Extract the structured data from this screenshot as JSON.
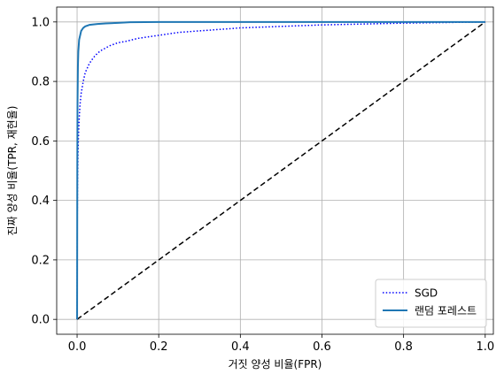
{
  "chart_data": {
    "type": "line",
    "xlabel": "거짓 양성 비율(FPR)",
    "ylabel": "진짜 양성 비율(TPR, 재현율)",
    "xlim": [
      -0.05,
      1.02
    ],
    "ylim": [
      -0.05,
      1.05
    ],
    "xticks": [
      0.0,
      0.2,
      0.4,
      0.6,
      0.8,
      1.0
    ],
    "yticks": [
      0.0,
      0.2,
      0.4,
      0.6,
      0.8,
      1.0
    ],
    "xtick_labels": [
      "0.0",
      "0.2",
      "0.4",
      "0.6",
      "0.8",
      "1.0"
    ],
    "ytick_labels": [
      "0.0",
      "0.2",
      "0.4",
      "0.6",
      "0.8",
      "1.0"
    ],
    "grid": true,
    "legend": {
      "placement": "bottom-right"
    },
    "series": [
      {
        "name": "SGD",
        "color": "#0000ff",
        "style": "dotted",
        "x": [
          0,
          0.0005,
          0.001,
          0.002,
          0.003,
          0.004,
          0.005,
          0.007,
          0.01,
          0.015,
          0.02,
          0.03,
          0.04,
          0.05,
          0.06,
          0.08,
          0.1,
          0.12,
          0.15,
          0.2,
          0.25,
          0.3,
          0.35,
          0.4,
          0.5,
          0.6,
          0.7,
          0.8,
          0.9,
          1.0
        ],
        "y": [
          0,
          0.35,
          0.45,
          0.55,
          0.6,
          0.64,
          0.67,
          0.72,
          0.76,
          0.8,
          0.83,
          0.86,
          0.88,
          0.895,
          0.905,
          0.92,
          0.93,
          0.935,
          0.945,
          0.955,
          0.965,
          0.97,
          0.975,
          0.98,
          0.985,
          0.99,
          0.993,
          0.996,
          0.998,
          1.0
        ]
      },
      {
        "name": "랜덤 포레스트",
        "color": "#1f77b4",
        "style": "solid",
        "x": [
          0,
          0.0005,
          0.001,
          0.002,
          0.003,
          0.005,
          0.01,
          0.015,
          0.02,
          0.03,
          0.05,
          0.07,
          0.1,
          0.13,
          0.2,
          0.3,
          0.5,
          0.7,
          1.0
        ],
        "y": [
          0,
          0.5,
          0.72,
          0.85,
          0.9,
          0.94,
          0.97,
          0.98,
          0.985,
          0.99,
          0.993,
          0.995,
          0.997,
          0.999,
          1.0,
          1.0,
          1.0,
          1.0,
          1.0
        ]
      },
      {
        "name": "",
        "color": "#000000",
        "style": "dashed",
        "x": [
          0,
          1
        ],
        "y": [
          0,
          1
        ]
      }
    ]
  }
}
